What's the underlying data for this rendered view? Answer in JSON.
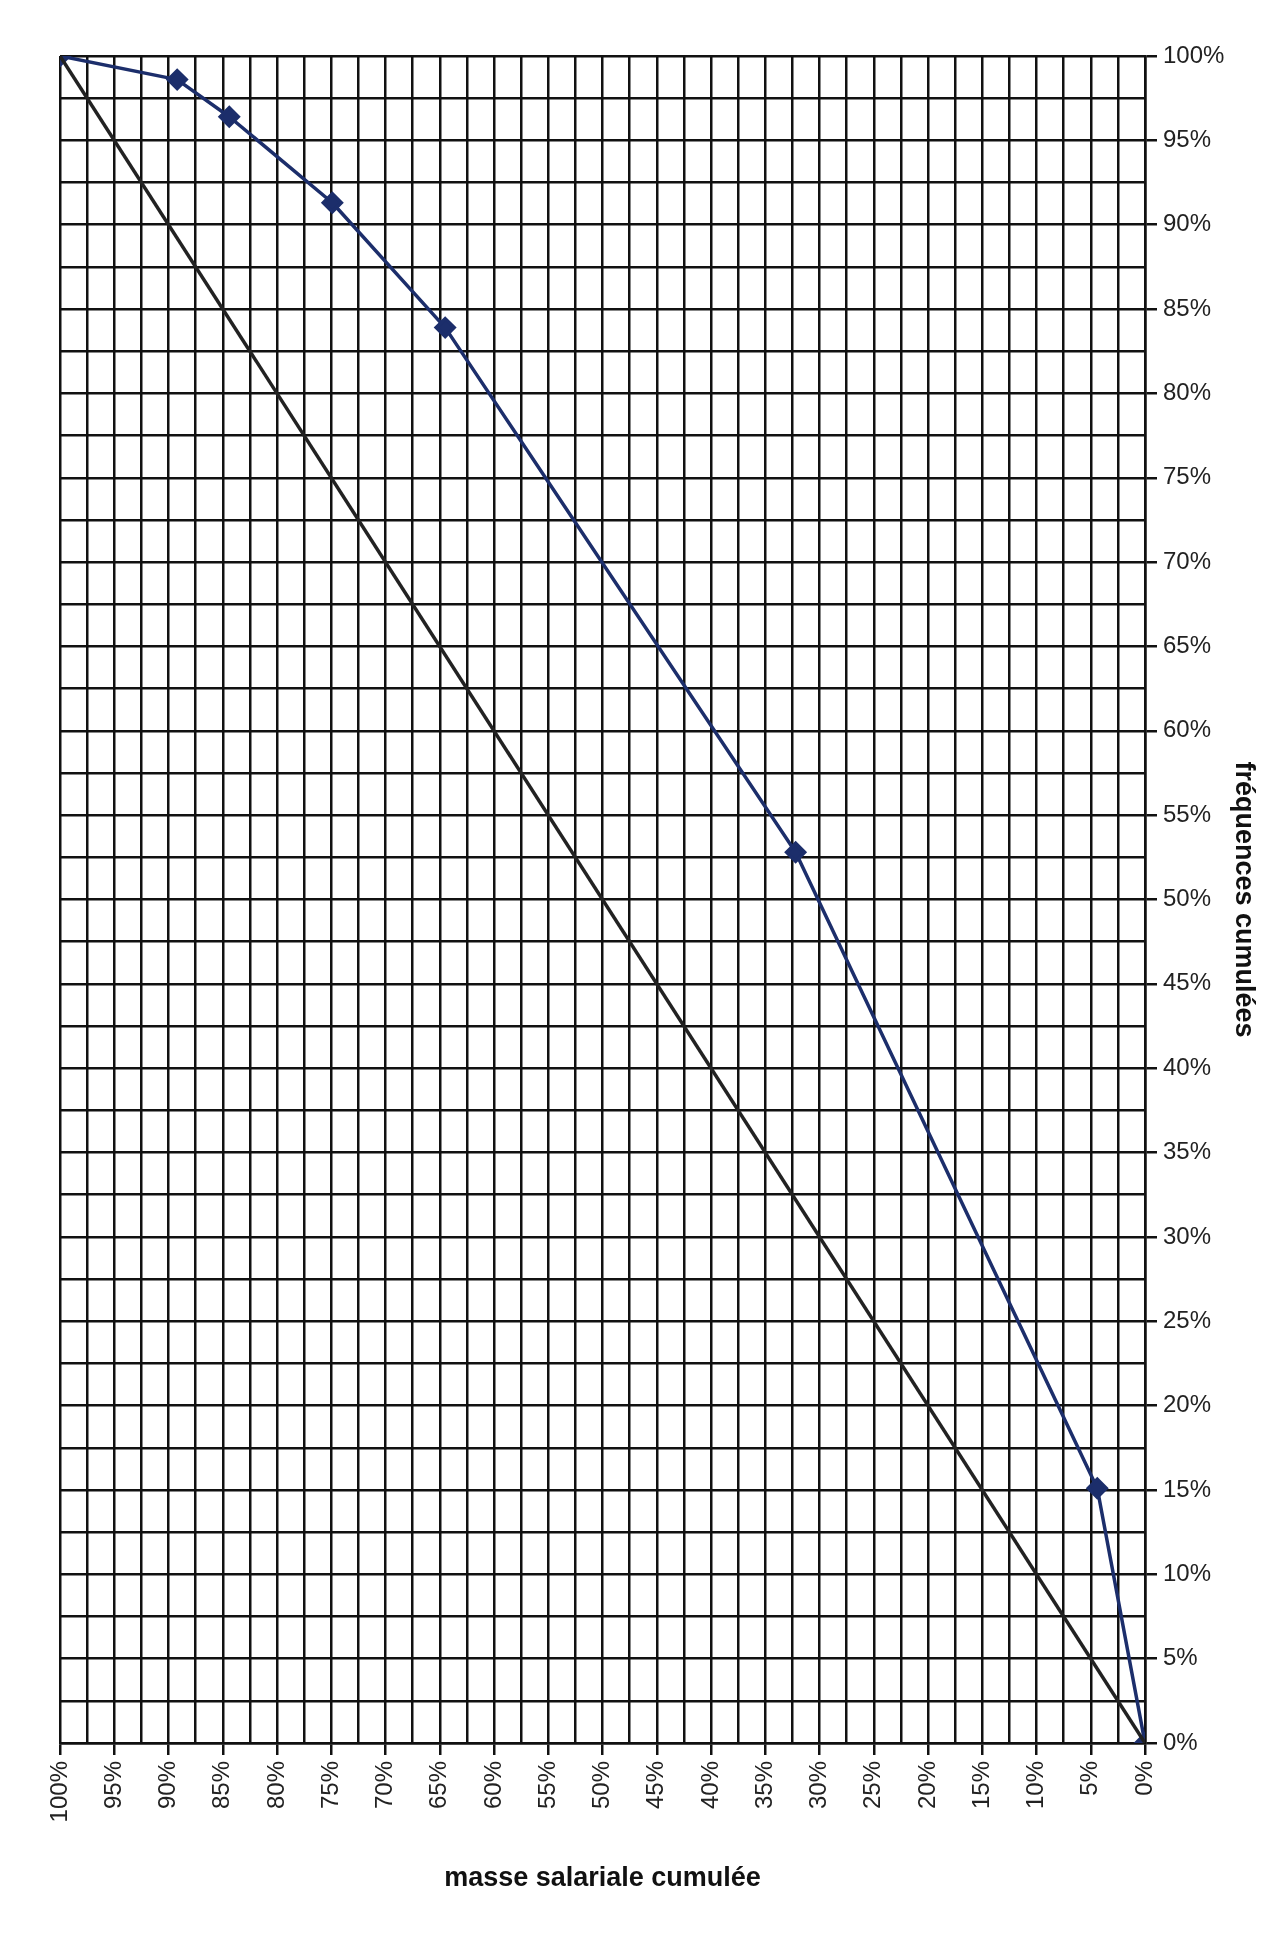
{
  "chart_data": {
    "type": "line",
    "xlabel": "masse salariale cumulée",
    "ylabel": "fréquences cumulées",
    "xlim": [
      100,
      0
    ],
    "ylim": [
      0,
      100
    ],
    "grid": true,
    "legend": false,
    "xticks": [
      {
        "value": 0,
        "label": "0%"
      },
      {
        "value": 2.5,
        "label": null
      },
      {
        "value": 5,
        "label": "5%"
      },
      {
        "value": 7.5,
        "label": null
      },
      {
        "value": 10,
        "label": "10%"
      },
      {
        "value": 12.5,
        "label": null
      },
      {
        "value": 15,
        "label": "15%"
      },
      {
        "value": 17.5,
        "label": null
      },
      {
        "value": 20,
        "label": "20%"
      },
      {
        "value": 22.5,
        "label": null
      },
      {
        "value": 25,
        "label": "25%"
      },
      {
        "value": 27.5,
        "label": null
      },
      {
        "value": 30,
        "label": "30%"
      },
      {
        "value": 32.5,
        "label": null
      },
      {
        "value": 35,
        "label": "35%"
      },
      {
        "value": 37.5,
        "label": null
      },
      {
        "value": 40,
        "label": "40%"
      },
      {
        "value": 42.5,
        "label": null
      },
      {
        "value": 45,
        "label": "45%"
      },
      {
        "value": 47.5,
        "label": null
      },
      {
        "value": 50,
        "label": "50%"
      },
      {
        "value": 52.5,
        "label": null
      },
      {
        "value": 55,
        "label": "55%"
      },
      {
        "value": 57.5,
        "label": null
      },
      {
        "value": 60,
        "label": "60%"
      },
      {
        "value": 62.5,
        "label": null
      },
      {
        "value": 65,
        "label": "65%"
      },
      {
        "value": 67.5,
        "label": null
      },
      {
        "value": 70,
        "label": "70%"
      },
      {
        "value": 72.5,
        "label": null
      },
      {
        "value": 75,
        "label": "75%"
      },
      {
        "value": 77.5,
        "label": null
      },
      {
        "value": 80,
        "label": "80%"
      },
      {
        "value": 82.5,
        "label": null
      },
      {
        "value": 85,
        "label": "85%"
      },
      {
        "value": 87.5,
        "label": null
      },
      {
        "value": 90,
        "label": "90%"
      },
      {
        "value": 92.5,
        "label": null
      },
      {
        "value": 95,
        "label": "95%"
      },
      {
        "value": 97.5,
        "label": null
      },
      {
        "value": 100,
        "label": "100%"
      }
    ],
    "yticks": [
      {
        "value": 0,
        "label": "0%"
      },
      {
        "value": 2.5,
        "label": null
      },
      {
        "value": 5,
        "label": "5%"
      },
      {
        "value": 7.5,
        "label": null
      },
      {
        "value": 10,
        "label": "10%"
      },
      {
        "value": 12.5,
        "label": null
      },
      {
        "value": 15,
        "label": "15%"
      },
      {
        "value": 17.5,
        "label": null
      },
      {
        "value": 20,
        "label": "20%"
      },
      {
        "value": 22.5,
        "label": null
      },
      {
        "value": 25,
        "label": "25%"
      },
      {
        "value": 27.5,
        "label": null
      },
      {
        "value": 30,
        "label": "30%"
      },
      {
        "value": 32.5,
        "label": null
      },
      {
        "value": 35,
        "label": "35%"
      },
      {
        "value": 37.5,
        "label": null
      },
      {
        "value": 40,
        "label": "40%"
      },
      {
        "value": 42.5,
        "label": null
      },
      {
        "value": 45,
        "label": "45%"
      },
      {
        "value": 47.5,
        "label": null
      },
      {
        "value": 50,
        "label": "50%"
      },
      {
        "value": 52.5,
        "label": null
      },
      {
        "value": 55,
        "label": "55%"
      },
      {
        "value": 57.5,
        "label": null
      },
      {
        "value": 60,
        "label": "60%"
      },
      {
        "value": 62.5,
        "label": null
      },
      {
        "value": 65,
        "label": "65%"
      },
      {
        "value": 67.5,
        "label": null
      },
      {
        "value": 70,
        "label": "70%"
      },
      {
        "value": 72.5,
        "label": null
      },
      {
        "value": 75,
        "label": "75%"
      },
      {
        "value": 77.5,
        "label": null
      },
      {
        "value": 80,
        "label": "80%"
      },
      {
        "value": 82.5,
        "label": null
      },
      {
        "value": 85,
        "label": "85%"
      },
      {
        "value": 87.5,
        "label": null
      },
      {
        "value": 90,
        "label": "90%"
      },
      {
        "value": 92.5,
        "label": null
      },
      {
        "value": 95,
        "label": "95%"
      },
      {
        "value": 97.5,
        "label": null
      },
      {
        "value": 100,
        "label": "100%"
      }
    ],
    "series": [
      {
        "type": "line",
        "x": [
          0,
          100
        ],
        "values": [
          0,
          100
        ],
        "color": "#222222",
        "marker": "none"
      },
      {
        "type": "line",
        "x": [
          0,
          4.4,
          32.2,
          64.5,
          74.9,
          84.4,
          89.2,
          100
        ],
        "values": [
          0,
          15.1,
          52.8,
          83.9,
          91.3,
          96.4,
          98.6,
          100
        ],
        "color": "#1c2e6b",
        "marker": "diamond"
      }
    ]
  }
}
